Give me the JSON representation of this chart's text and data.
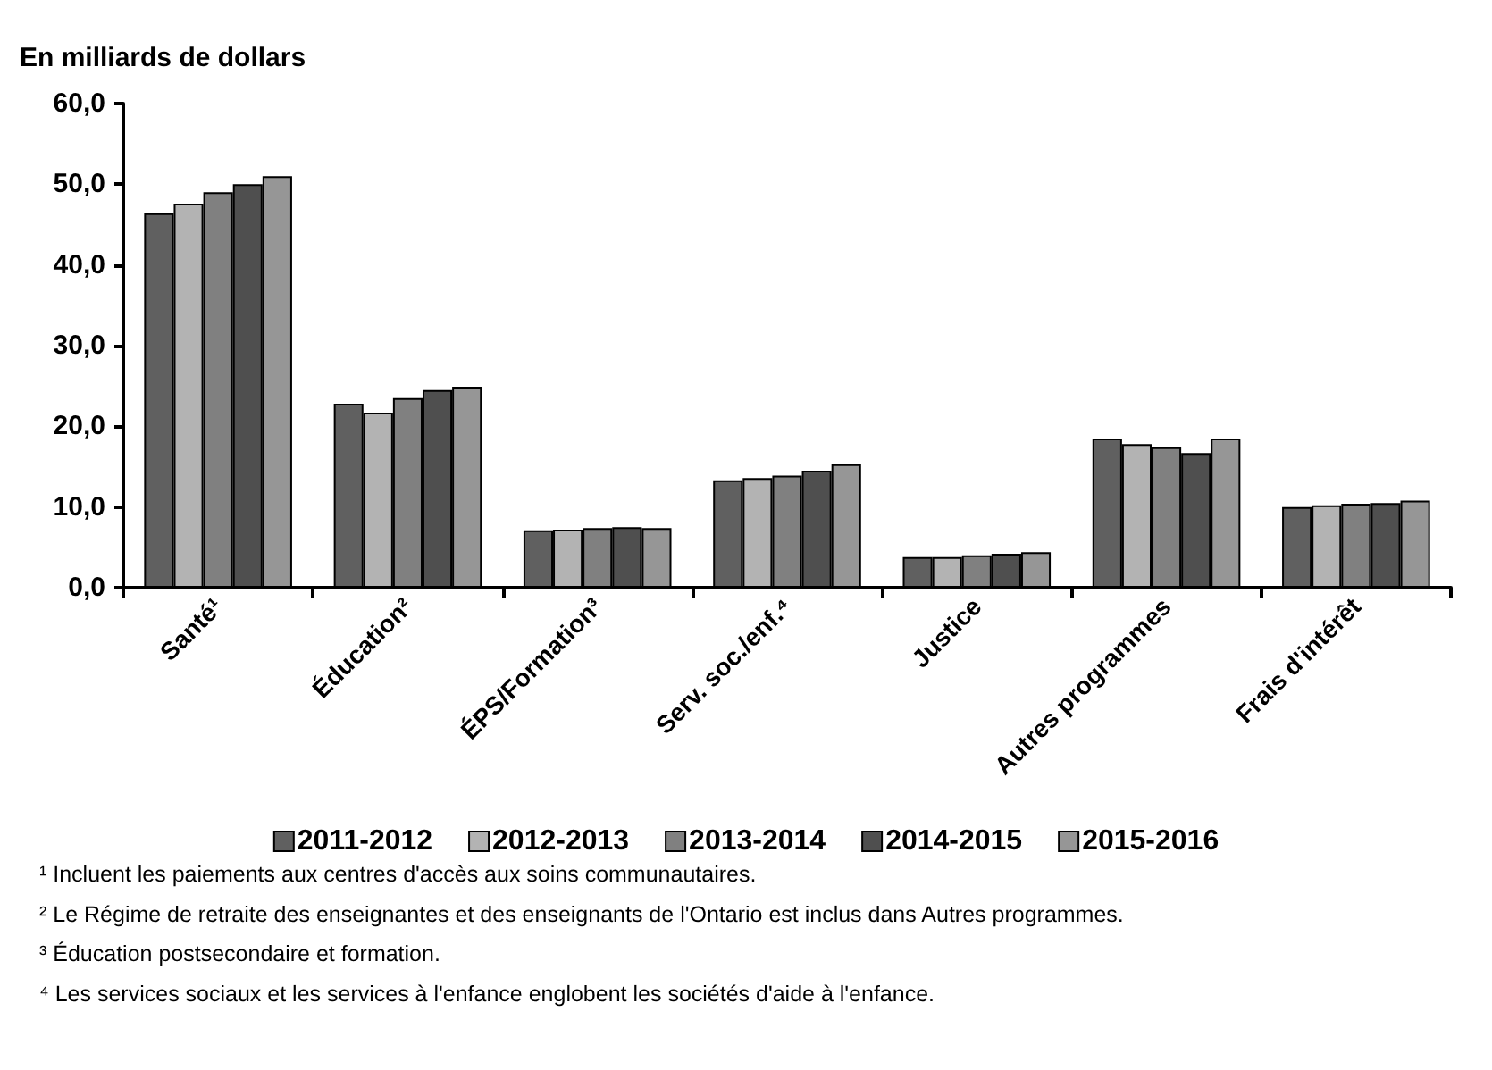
{
  "chart_data": {
    "type": "bar",
    "ylabel": "En milliards de dollars",
    "categories": [
      "Santé¹",
      "Éducation²",
      "ÉPS/Formation³",
      "Serv. soc./enf.⁴",
      "Justice",
      "Autres programmes",
      "Frais d'intérêt"
    ],
    "series": [
      {
        "name": "2011-2012",
        "color": "#606060",
        "values": [
          46.4,
          22.8,
          7.1,
          13.3,
          3.8,
          18.5,
          10.0
        ]
      },
      {
        "name": "2012-2013",
        "color": "#b3b3b3",
        "values": [
          47.6,
          21.7,
          7.2,
          13.6,
          3.8,
          17.8,
          10.2
        ]
      },
      {
        "name": "2013-2014",
        "color": "#808080",
        "values": [
          49.0,
          23.5,
          7.4,
          13.9,
          4.0,
          17.4,
          10.4
        ]
      },
      {
        "name": "2014-2015",
        "color": "#4f4f4f",
        "values": [
          50.0,
          24.5,
          7.5,
          14.5,
          4.2,
          16.7,
          10.5
        ]
      },
      {
        "name": "2015-2016",
        "color": "#969696",
        "values": [
          51.0,
          24.9,
          7.4,
          15.3,
          4.4,
          18.5,
          10.8
        ]
      }
    ],
    "ylim": [
      0,
      60
    ],
    "yticks": [
      {
        "value": 0,
        "label": "0,0"
      },
      {
        "value": 10,
        "label": "10,0"
      },
      {
        "value": 20,
        "label": "20,0"
      },
      {
        "value": 30,
        "label": "30,0"
      },
      {
        "value": 40,
        "label": "40,0"
      },
      {
        "value": 50,
        "label": "50,0"
      },
      {
        "value": 60,
        "label": "60,0"
      }
    ],
    "grid": false,
    "legend": "bottom",
    "annotations": [
      "¹ Incluent les paiements aux centres d'accès aux soins communautaires.",
      "² Le Régime de retraite des enseignantes et des enseignants de l'Ontario est inclus dans Autres programmes.",
      "³ Éducation postsecondaire et formation.",
      "⁴ Les services sociaux et les services à l'enfance englobent les sociétés d'aide à l'enfance."
    ]
  }
}
